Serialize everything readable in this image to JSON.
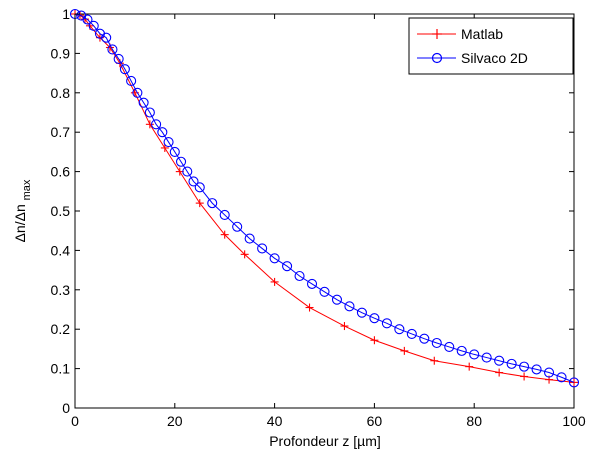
{
  "chart_data": {
    "type": "line",
    "xlabel": "Profondeur z [µm]",
    "ylabel": {
      "main": "Δn/Δn",
      "subscript": "max"
    },
    "xlim": [
      0,
      100
    ],
    "ylim": [
      0,
      1
    ],
    "xticks": [
      0,
      20,
      40,
      60,
      80,
      100
    ],
    "yticks": [
      0,
      0.1,
      0.2,
      0.3,
      0.4,
      0.5,
      0.6,
      0.7,
      0.8,
      0.9,
      1
    ],
    "grid": false,
    "legend_position": "top-right",
    "series": [
      {
        "name": "Matlab",
        "color": "#ff0000",
        "marker": "plus",
        "x": [
          0,
          1,
          2,
          3,
          5,
          7,
          9,
          12,
          15,
          18,
          21,
          25,
          30,
          34,
          40,
          47,
          54,
          60,
          66,
          72,
          79,
          85,
          90,
          95,
          100
        ],
        "y": [
          1.0,
          0.997,
          0.987,
          0.97,
          0.94,
          0.915,
          0.875,
          0.8,
          0.72,
          0.66,
          0.6,
          0.52,
          0.44,
          0.39,
          0.32,
          0.255,
          0.208,
          0.172,
          0.145,
          0.12,
          0.105,
          0.09,
          0.08,
          0.072,
          0.065
        ]
      },
      {
        "name": "Silvaco 2D",
        "color": "#0000ff",
        "marker": "circle",
        "x": [
          0,
          1.25,
          2.5,
          3.75,
          5,
          6.25,
          7.5,
          8.75,
          10,
          11.25,
          12.5,
          13.75,
          15,
          16.25,
          17.5,
          18.75,
          20,
          21.25,
          22.5,
          23.75,
          25,
          27.5,
          30,
          32.5,
          35,
          37.5,
          40,
          42.5,
          45,
          47.5,
          50,
          52.5,
          55,
          57.5,
          60,
          62.5,
          65,
          67.5,
          70,
          72.5,
          75,
          77.5,
          80,
          82.5,
          85,
          87.5,
          90,
          92.5,
          95,
          97.5,
          100
        ],
        "y": [
          1.0,
          0.996,
          0.986,
          0.97,
          0.95,
          0.94,
          0.91,
          0.886,
          0.86,
          0.83,
          0.8,
          0.775,
          0.75,
          0.72,
          0.7,
          0.675,
          0.65,
          0.625,
          0.6,
          0.575,
          0.56,
          0.52,
          0.49,
          0.46,
          0.43,
          0.405,
          0.38,
          0.36,
          0.335,
          0.315,
          0.295,
          0.275,
          0.258,
          0.242,
          0.228,
          0.215,
          0.2,
          0.188,
          0.176,
          0.165,
          0.155,
          0.145,
          0.136,
          0.128,
          0.12,
          0.112,
          0.105,
          0.098,
          0.09,
          0.078,
          0.065
        ]
      }
    ]
  }
}
